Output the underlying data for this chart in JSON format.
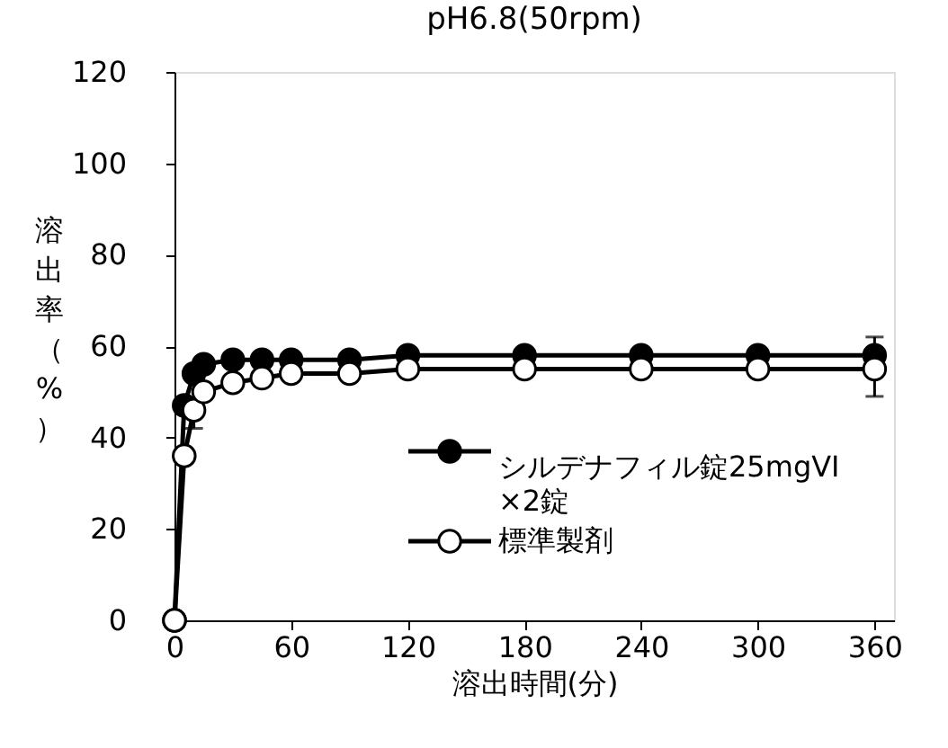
{
  "chart_data": {
    "type": "line",
    "title": "pH6.8(50rpm)",
    "xlabel": "溶出時間(分)",
    "ylabel": "溶出率（%）",
    "x": [
      0,
      5,
      10,
      15,
      30,
      45,
      60,
      90,
      120,
      180,
      240,
      300,
      360
    ],
    "series": [
      {
        "name": "シルデナフィル錠25mgVI\n×2錠",
        "color": "#000000",
        "values": [
          0,
          47,
          54,
          56,
          57,
          57,
          57,
          57,
          58,
          58,
          58,
          58,
          58
        ],
        "errors": [
          null,
          null,
          null,
          null,
          null,
          null,
          null,
          null,
          null,
          null,
          null,
          null,
          [
            58,
            62
          ]
        ]
      },
      {
        "name": "標準製剤",
        "color": "#ffffff",
        "values": [
          0,
          36,
          46,
          50,
          52,
          53,
          54,
          54,
          55,
          55,
          55,
          55,
          55
        ],
        "errors": [
          null,
          null,
          [
            42,
            46
          ],
          null,
          null,
          null,
          null,
          null,
          null,
          null,
          null,
          null,
          [
            49,
            55
          ]
        ]
      }
    ],
    "xlim": [
      0,
      370
    ],
    "xticks": [
      0,
      60,
      120,
      180,
      240,
      300,
      360
    ],
    "ylim": [
      0,
      120
    ],
    "yticks": [
      0,
      20,
      40,
      60,
      80,
      100,
      120
    ],
    "grid": false,
    "legend": "bottom right",
    "marker": "circle",
    "line_style": "solid"
  }
}
